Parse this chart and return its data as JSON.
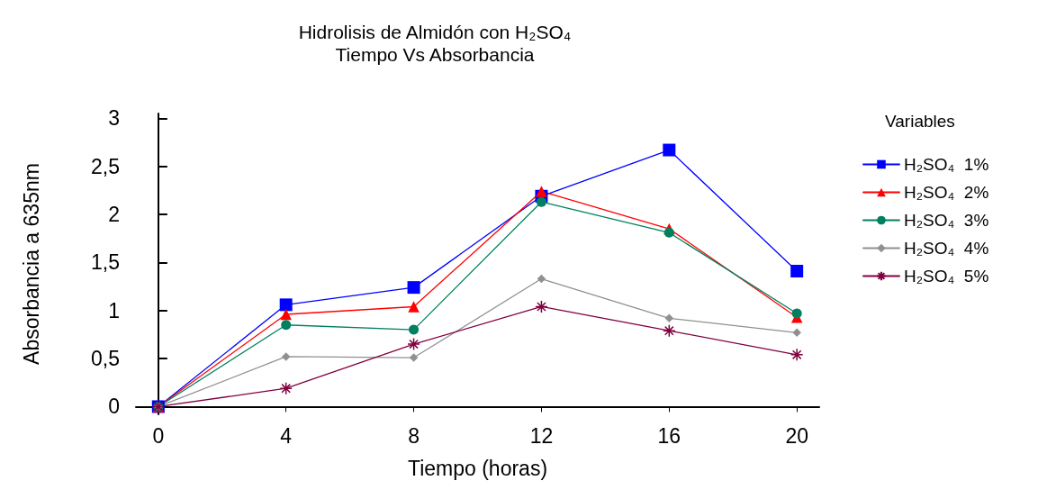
{
  "chart_data": {
    "type": "line",
    "title": "Hidrolisis de Almidón con H₂SO₄",
    "subtitle": "Tiempo Vs Absorbancia",
    "xlabel": "Tiempo (horas)",
    "ylabel": "Absorbancia a 635nm",
    "legend_title": "Variables",
    "legend": "right",
    "grid": false,
    "line_style": "solid",
    "x": [
      0,
      4,
      8,
      12,
      16,
      20
    ],
    "xlim": [
      -0.7,
      20.7
    ],
    "xticks": [
      0,
      4,
      8,
      12,
      16,
      20
    ],
    "ylim": [
      -0.08,
      3.05
    ],
    "yticks": [
      0,
      {
        "value": 0.5,
        "label": "0,5"
      },
      1,
      {
        "value": 1.5,
        "label": "1,5"
      },
      2,
      {
        "value": 2.5,
        "label": "2,5"
      },
      3
    ],
    "series": [
      {
        "name": "H₂SO₄  1%",
        "color": "#0000ff",
        "marker": "square",
        "values": [
          0,
          1.06,
          1.24,
          2.19,
          2.67,
          1.41
        ]
      },
      {
        "name": "H₂SO₄  2%",
        "color": "#ff0000",
        "marker": "triangle",
        "values": [
          0,
          0.96,
          1.04,
          2.24,
          1.85,
          0.93
        ]
      },
      {
        "name": "H₂SO₄  3%",
        "color": "#008060",
        "marker": "circle",
        "values": [
          0,
          0.85,
          0.8,
          2.13,
          1.81,
          0.97
        ]
      },
      {
        "name": "H₂SO₄  4%",
        "color": "#909090",
        "marker": "diamond",
        "values": [
          0,
          0.52,
          0.51,
          1.33,
          0.92,
          0.77
        ]
      },
      {
        "name": "H₂SO₄  5%",
        "color": "#800040",
        "marker": "cross",
        "values": [
          0,
          0.19,
          0.65,
          1.04,
          0.79,
          0.54
        ]
      }
    ]
  }
}
